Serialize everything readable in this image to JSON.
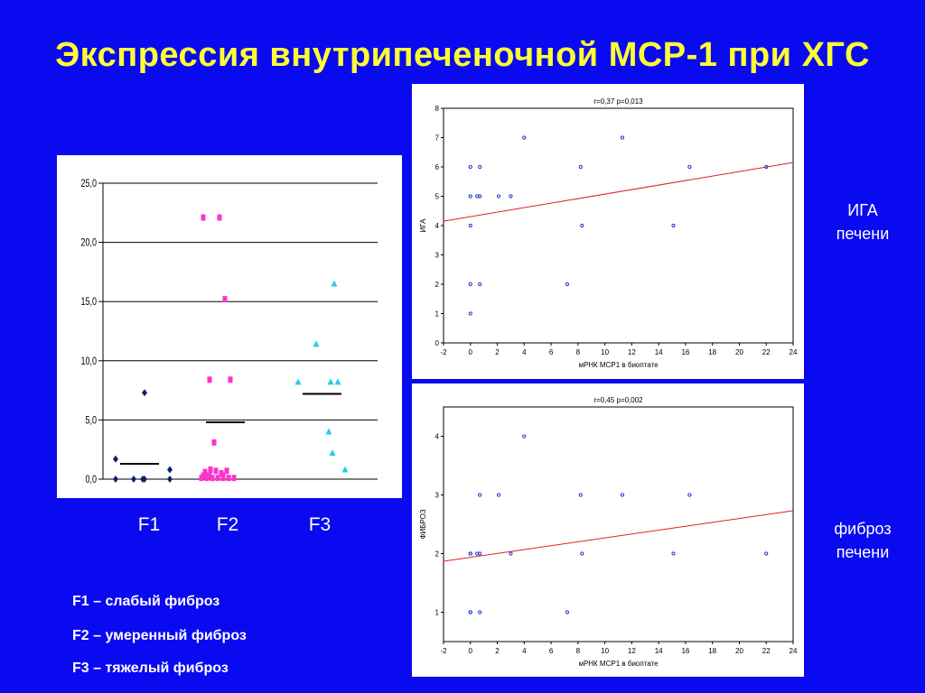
{
  "title": "Экспрессия внутрипеченочной MCP-1 при ХГС",
  "side_labels": {
    "top": "ИГА\nпечени",
    "bottom": "фиброз\nпечени"
  },
  "group_labels": [
    "F1",
    "F2",
    "F3"
  ],
  "legend": [
    "F1 – слабый фиброз",
    "F2 – умеренный фиброз",
    "F3 – тяжелый фиброз"
  ],
  "colors": {
    "background": "#0a0af0",
    "title": "#ffff33",
    "f1": "#0b1f66",
    "f2": "#ff33cc",
    "f3": "#22ccee",
    "scatter_point": "#1a2fd0",
    "regression": "#e02020"
  },
  "chart_data": [
    {
      "type": "scatter",
      "title": "",
      "xlabel": "",
      "ylabel": "",
      "ylim": [
        0,
        25
      ],
      "yticks": [
        "0,0",
        "5,0",
        "10,0",
        "15,0",
        "20,0",
        "25,0"
      ],
      "grid": true,
      "series": [
        {
          "name": "F1",
          "marker": "diamond",
          "x": [
            1,
            1,
            2,
            2.5,
            2.6,
            4,
            4,
            2.6
          ],
          "y": [
            0,
            1.7,
            0,
            0,
            0,
            0,
            0.8,
            7.3
          ],
          "median": 1.3
        },
        {
          "name": "F2",
          "marker": "square",
          "x": [
            1.0,
            1.3,
            1.6,
            1.9,
            2.2,
            2.5,
            2.8,
            1.2,
            1.5,
            1.8,
            2.1,
            2.4,
            1.7,
            1.1,
            2.0,
            1.45,
            2.6,
            1.1,
            2.2,
            1.45,
            2.3
          ],
          "y": [
            0.1,
            0.1,
            0.1,
            0.1,
            0.1,
            0.1,
            0.1,
            0.6,
            0.8,
            0.7,
            0.5,
            0.7,
            3.1,
            22.1,
            22.1,
            8.4,
            8.4,
            0.3,
            0.3,
            0.3,
            15.2
          ],
          "median": 4.8
        },
        {
          "name": "F3",
          "marker": "triangle",
          "x": [
            1,
            3,
            2,
            2.8,
            3.2,
            2.7,
            2.9,
            3.6
          ],
          "y": [
            8.2,
            16.5,
            11.4,
            8.2,
            8.2,
            4.0,
            2.2,
            0.8
          ],
          "median": 7.2
        }
      ]
    },
    {
      "type": "scatter",
      "title": "r=0,37 p=0,013",
      "xlabel": "мРНК MCP1 в биоптате",
      "ylabel": "ИГА",
      "xlim": [
        -2,
        24
      ],
      "ylim": [
        0,
        8
      ],
      "xticks": [
        -2,
        0,
        2,
        4,
        6,
        8,
        10,
        12,
        14,
        16,
        18,
        20,
        22,
        24
      ],
      "yticks": [
        0,
        1,
        2,
        3,
        4,
        5,
        6,
        7,
        8
      ],
      "x": [
        0,
        0,
        0,
        0,
        0,
        0.5,
        0.7,
        0.7,
        0.7,
        2.1,
        3.0,
        4.0,
        7.2,
        8.2,
        8.3,
        11.3,
        15.1,
        16.3,
        22.0
      ],
      "y": [
        1,
        2,
        4,
        5,
        6,
        5,
        5,
        2,
        6,
        5,
        5,
        7,
        2,
        6,
        4,
        7,
        4,
        6,
        6
      ],
      "regression": {
        "x": [
          -2,
          24
        ],
        "y": [
          4.15,
          6.15
        ]
      }
    },
    {
      "type": "scatter",
      "title": "r=0,45 p=0,002",
      "xlabel": "мРНК MCP1 в биоптате",
      "ylabel": "ФИБРОЗ",
      "xlim": [
        -2,
        24
      ],
      "ylim": [
        0.5,
        4.5
      ],
      "xticks": [
        -2,
        0,
        2,
        4,
        6,
        8,
        10,
        12,
        14,
        16,
        18,
        20,
        22,
        24
      ],
      "yticks": [
        1,
        2,
        3,
        4
      ],
      "x": [
        0,
        0,
        0,
        0,
        0.5,
        0.7,
        0.7,
        0.7,
        2.1,
        3.0,
        4.0,
        7.2,
        8.2,
        8.3,
        11.3,
        15.1,
        16.3,
        22.0
      ],
      "y": [
        1,
        2,
        2,
        1,
        2,
        3,
        2,
        1,
        3,
        2,
        4,
        1,
        3,
        2,
        3,
        2,
        3,
        2
      ],
      "regression": {
        "x": [
          -2,
          24
        ],
        "y": [
          1.87,
          2.73
        ]
      }
    }
  ]
}
